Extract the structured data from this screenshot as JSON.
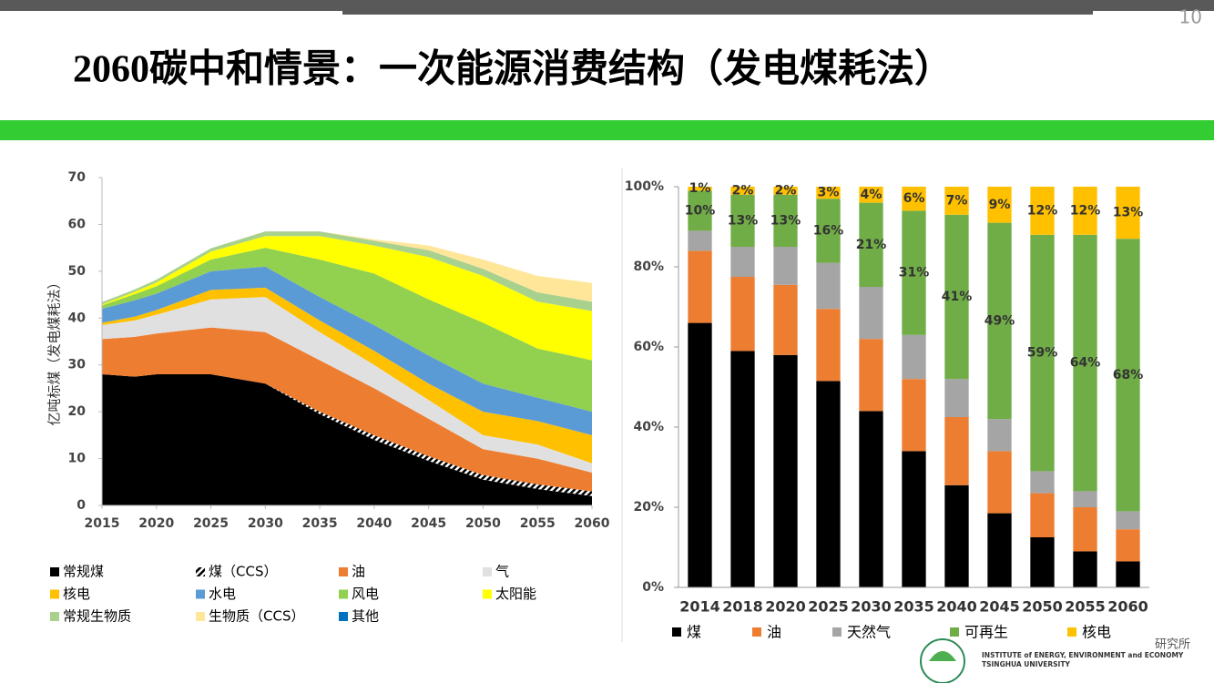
{
  "page": {
    "number": "10",
    "title": "2060碳中和情景：一次能源消费结构（发电煤耗法）"
  },
  "chart_data": [
    {
      "type": "area",
      "stacked": true,
      "y_label": "亿吨标煤（发电煤耗法）",
      "x": [
        2015,
        2018,
        2020,
        2025,
        2030,
        2035,
        2040,
        2045,
        2050,
        2055,
        2060
      ],
      "xlim": [
        2015,
        2060
      ],
      "xticks": [
        2015,
        2020,
        2025,
        2030,
        2035,
        2040,
        2045,
        2050,
        2055,
        2060
      ],
      "ylim": [
        0,
        70
      ],
      "yticks": [
        0,
        10,
        20,
        30,
        40,
        50,
        60,
        70
      ],
      "series": [
        {
          "name": "常规煤",
          "color": "#000000",
          "values": [
            28,
            27.5,
            28,
            28,
            26,
            19.5,
            14,
            9.5,
            5.5,
            3.5,
            2
          ]
        },
        {
          "name": "煤（CCS）",
          "color": "#000000",
          "hatch": true,
          "values": [
            0,
            0,
            0,
            0,
            0,
            0.5,
            1,
            1,
            1,
            1,
            1
          ]
        },
        {
          "name": "油",
          "color": "#ED7D31",
          "values": [
            7.5,
            8.5,
            8.7,
            10,
            11,
            11,
            10,
            8,
            5.5,
            5.5,
            4
          ]
        },
        {
          "name": "气",
          "color": "#E0E0E0",
          "values": [
            3,
            3.5,
            4,
            6,
            7.5,
            6,
            5,
            4,
            3,
            3,
            2
          ]
        },
        {
          "name": "核电",
          "color": "#FFC000",
          "values": [
            0.5,
            0.8,
            1,
            2,
            2,
            2.5,
            3,
            3.5,
            5,
            5,
            6
          ]
        },
        {
          "name": "水电",
          "color": "#5B9BD5",
          "values": [
            3,
            3.5,
            3.5,
            4,
            4.5,
            5,
            5.5,
            6,
            6,
            5,
            5
          ]
        },
        {
          "name": "风电",
          "color": "#92D050",
          "values": [
            0.7,
            1.3,
            1.6,
            2.5,
            4,
            8,
            11,
            12,
            13,
            10.5,
            11
          ]
        },
        {
          "name": "太阳能",
          "color": "#FFFF00",
          "values": [
            0.2,
            0.5,
            0.8,
            1.7,
            2.5,
            5,
            6,
            9,
            10,
            10,
            10.5
          ]
        },
        {
          "name": "常规生物质",
          "color": "#A9D18E",
          "values": [
            0.5,
            0.5,
            0.6,
            0.7,
            1,
            1,
            1,
            1.5,
            1.5,
            2,
            2
          ]
        },
        {
          "name": "生物质（CCS）",
          "color": "#FFE699",
          "values": [
            0,
            0,
            0,
            0,
            0,
            0,
            0.3,
            1,
            2,
            3.5,
            4
          ]
        },
        {
          "name": "其他",
          "color": "#0070C0",
          "values": [
            0,
            0,
            0,
            0,
            0,
            0,
            0,
            0,
            0,
            0,
            0
          ]
        }
      ]
    },
    {
      "type": "bar",
      "stacked": true,
      "categories": [
        "2014",
        "2018",
        "2020",
        "2025",
        "2030",
        "2035",
        "2040",
        "2045",
        "2050",
        "2055",
        "2060"
      ],
      "ylim": [
        0,
        100
      ],
      "yticks": [
        {
          "value": 0,
          "label": "0%"
        },
        {
          "value": 20,
          "label": "20%"
        },
        {
          "value": 40,
          "label": "40%"
        },
        {
          "value": 60,
          "label": "60%"
        },
        {
          "value": 80,
          "label": "80%"
        },
        {
          "value": 100,
          "label": "100%"
        }
      ],
      "series": [
        {
          "name": "煤",
          "color": "#000000",
          "values": [
            66,
            59,
            58,
            51.5,
            44,
            34,
            25.5,
            18.5,
            12.5,
            9,
            6.5
          ]
        },
        {
          "name": "油",
          "color": "#ED7D31",
          "values": [
            18,
            18.5,
            17.5,
            18,
            18,
            18,
            17,
            15.5,
            11,
            11,
            8
          ]
        },
        {
          "name": "天然气",
          "color": "#A5A5A5",
          "values": [
            5,
            7.5,
            9.5,
            11.5,
            13,
            11,
            9.5,
            8,
            5.5,
            4,
            4.5
          ]
        },
        {
          "name": "可再生",
          "color": "#70AD47",
          "values": [
            10,
            13,
            13,
            16,
            21,
            31,
            41,
            49,
            59,
            64,
            68
          ],
          "value_labels": [
            "10%",
            "13%",
            "13%",
            "16%",
            "21%",
            "31%",
            "41%",
            "49%",
            "59%",
            "64%",
            "68%"
          ]
        },
        {
          "name": "核电",
          "color": "#FFC000",
          "values": [
            1,
            2,
            2,
            3,
            4,
            6,
            7,
            9,
            12,
            12,
            13
          ],
          "value_labels": [
            "1%",
            "2%",
            "2%",
            "3%",
            "4%",
            "6%",
            "7%",
            "9%",
            "12%",
            "12%",
            "13%"
          ]
        }
      ]
    }
  ],
  "footer": {
    "cn": "研究所",
    "en1": "INSTITUTE of ENERGY, ENVIRONMENT and ECONOMY",
    "en2": "TSINGHUA UNIVERSITY"
  }
}
